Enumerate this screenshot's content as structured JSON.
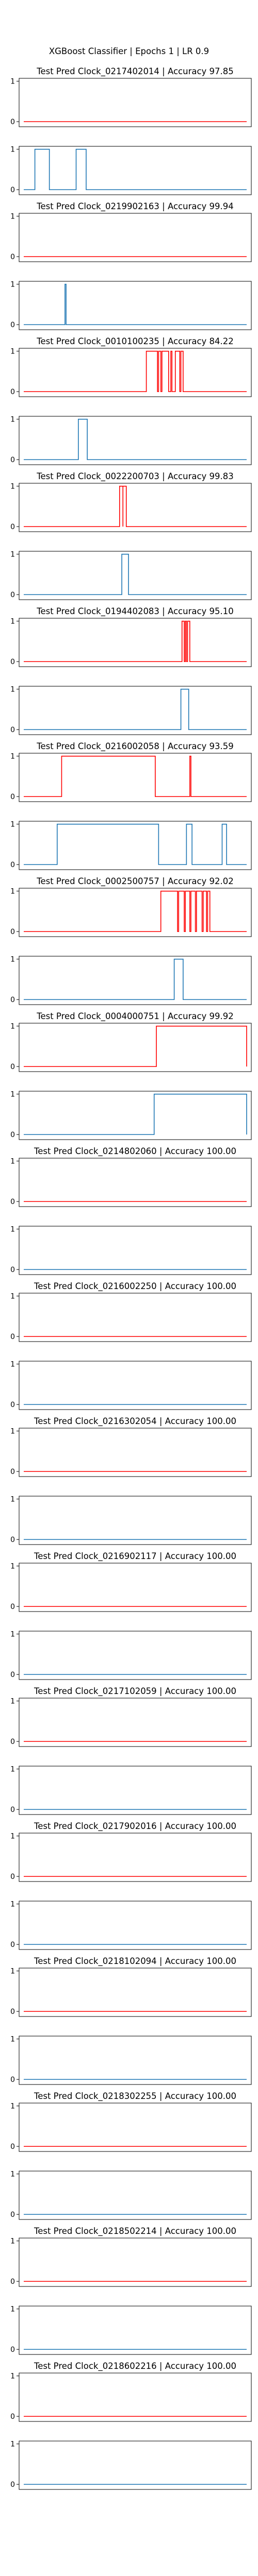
{
  "figure": {
    "suptitle": "XGBoost Classifier | Epochs 1 | LR 0.9"
  },
  "colors": {
    "pred": "#ff0000",
    "truth": "#1f77b4",
    "axis": "#000000"
  },
  "chart_data": [
    {
      "type": "line",
      "title": "Test Pred Clock_0217402014 | Accuracy 97.85",
      "pred_segments": [],
      "truth_segments": [
        [
          0.05,
          0.115
        ],
        [
          0.235,
          0.28
        ]
      ],
      "yticks": [
        "0",
        "1"
      ]
    },
    {
      "type": "line",
      "title": "Test Pred Clock_0219902163 | Accuracy 99.94",
      "pred_segments": [],
      "truth_segments": [
        [
          0.185,
          0.19
        ]
      ],
      "yticks": [
        "0",
        "1"
      ]
    },
    {
      "type": "line",
      "title": "Test Pred Clock_0010100235 | Accuracy 84.22",
      "pred_segments": [
        [
          0.55,
          0.6
        ],
        [
          0.605,
          0.615
        ],
        [
          0.62,
          0.65
        ],
        [
          0.66,
          0.665
        ],
        [
          0.68,
          0.7
        ],
        [
          0.705,
          0.715
        ]
      ],
      "truth_segments": [
        [
          0.245,
          0.285
        ]
      ],
      "yticks": [
        "0",
        "1"
      ]
    },
    {
      "type": "line",
      "title": "Test Pred Clock_0022200703 | Accuracy 99.83",
      "pred_segments": [
        [
          0.43,
          0.445
        ],
        [
          0.445,
          0.46
        ]
      ],
      "truth_segments": [
        [
          0.44,
          0.47
        ]
      ],
      "yticks": [
        "0",
        "1"
      ]
    },
    {
      "type": "line",
      "title": "Test Pred Clock_0194402083 | Accuracy 95.10",
      "pred_segments": [
        [
          0.71,
          0.72
        ],
        [
          0.725,
          0.73
        ],
        [
          0.735,
          0.745
        ]
      ],
      "truth_segments": [
        [
          0.705,
          0.74
        ]
      ],
      "yticks": [
        "0",
        "1"
      ]
    },
    {
      "type": "line",
      "title": "Test Pred Clock_0216002058 | Accuracy 93.59",
      "pred_segments": [
        [
          0.17,
          0.59
        ],
        [
          0.745,
          0.75
        ]
      ],
      "truth_segments": [
        [
          0.15,
          0.605
        ],
        [
          0.73,
          0.755
        ],
        [
          0.89,
          0.91
        ]
      ],
      "yticks": [
        "0",
        "1"
      ]
    },
    {
      "type": "line",
      "title": "Test Pred Clock_0002500757 | Accuracy 92.02",
      "pred_segments": [
        [
          0.615,
          0.69
        ],
        [
          0.695,
          0.72
        ],
        [
          0.725,
          0.745
        ],
        [
          0.75,
          0.77
        ],
        [
          0.775,
          0.8
        ],
        [
          0.805,
          0.82
        ],
        [
          0.825,
          0.835
        ]
      ],
      "truth_segments": [
        [
          0.675,
          0.715
        ]
      ],
      "yticks": [
        "0",
        "1"
      ]
    },
    {
      "type": "line",
      "title": "Test Pred Clock_0004000751 | Accuracy 99.92",
      "pred_segments": [
        [
          0.595,
          1.0
        ]
      ],
      "truth_segments": [
        [
          0.585,
          1.0
        ]
      ],
      "yticks": [
        "0",
        "1"
      ]
    },
    {
      "type": "line",
      "title": "Test Pred Clock_0214802060 | Accuracy 100.00",
      "pred_segments": [],
      "truth_segments": [],
      "yticks": [
        "0",
        "1"
      ]
    },
    {
      "type": "line",
      "title": "Test Pred Clock_0216002250 | Accuracy 100.00",
      "pred_segments": [],
      "truth_segments": [],
      "yticks": [
        "0",
        "1"
      ]
    },
    {
      "type": "line",
      "title": "Test Pred Clock_0216302054 | Accuracy 100.00",
      "pred_segments": [],
      "truth_segments": [],
      "yticks": [
        "0",
        "1"
      ]
    },
    {
      "type": "line",
      "title": "Test Pred Clock_0216902117 | Accuracy 100.00",
      "pred_segments": [],
      "truth_segments": [],
      "yticks": [
        "0",
        "1"
      ]
    },
    {
      "type": "line",
      "title": "Test Pred Clock_0217102059 | Accuracy 100.00",
      "pred_segments": [],
      "truth_segments": [],
      "yticks": [
        "0",
        "1"
      ]
    },
    {
      "type": "line",
      "title": "Test Pred Clock_0217902016 | Accuracy 100.00",
      "pred_segments": [],
      "truth_segments": [],
      "yticks": [
        "0",
        "1"
      ]
    },
    {
      "type": "line",
      "title": "Test Pred Clock_0218102094 | Accuracy 100.00",
      "pred_segments": [],
      "truth_segments": [],
      "yticks": [
        "0",
        "1"
      ]
    },
    {
      "type": "line",
      "title": "Test Pred Clock_0218302255 | Accuracy 100.00",
      "pred_segments": [],
      "truth_segments": [],
      "yticks": [
        "0",
        "1"
      ]
    },
    {
      "type": "line",
      "title": "Test Pred Clock_0218502214 | Accuracy 100.00",
      "pred_segments": [],
      "truth_segments": [],
      "yticks": [
        "0",
        "1"
      ]
    },
    {
      "type": "line",
      "title": "Test Pred Clock_0218602216 | Accuracy 100.00",
      "pred_segments": [],
      "truth_segments": [],
      "yticks": [
        "0",
        "1"
      ]
    }
  ]
}
